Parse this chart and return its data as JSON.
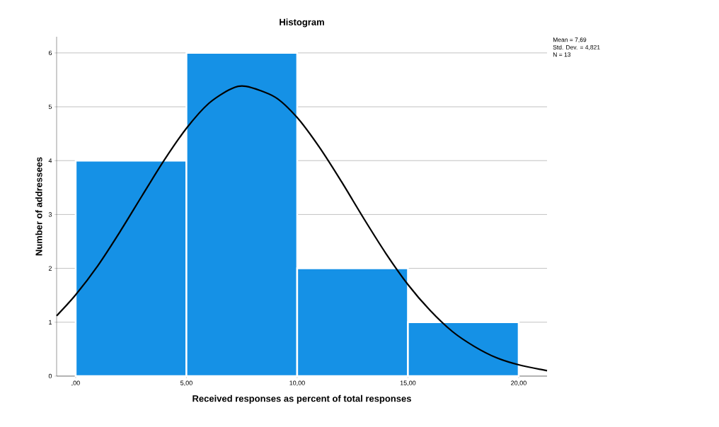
{
  "chart_data": {
    "type": "histogram",
    "title": "Histogram",
    "xlabel": "Received responses as percent of total responses",
    "ylabel": "Number of addressees",
    "bins": [
      0,
      5,
      10,
      15,
      20
    ],
    "values": [
      4,
      6,
      2,
      1
    ],
    "color": "#1591e6",
    "series": [
      {
        "type": "line",
        "color": "#000000",
        "x": [
          -0.86,
          0,
          1,
          2,
          3,
          4,
          5,
          6,
          7,
          7.69,
          9,
          10,
          11,
          12,
          13,
          14,
          15,
          16,
          17,
          18,
          19,
          20,
          21.28
        ],
        "values": [
          1.12,
          1.51,
          2.05,
          2.68,
          3.35,
          4.01,
          4.6,
          5.06,
          5.33,
          5.38,
          5.18,
          4.8,
          4.25,
          3.61,
          2.93,
          2.28,
          1.7,
          1.22,
          0.83,
          0.55,
          0.34,
          0.21,
          0.1
        ]
      }
    ],
    "xlim": [
      -0.86,
      21.28
    ],
    "ylim": [
      0,
      6.3
    ],
    "xticks": [
      {
        "value": 0,
        "label": ",00"
      },
      {
        "value": 5,
        "label": "5,00"
      },
      {
        "value": 10,
        "label": "10,00"
      },
      {
        "value": 15,
        "label": "15,00"
      },
      {
        "value": 20,
        "label": "20,00"
      }
    ],
    "yticks": [
      0,
      1,
      2,
      3,
      4,
      5,
      6
    ],
    "grid": "y",
    "annotations": [
      "Mean = 7,69",
      "Std. Dev. = 4,821",
      "N = 13"
    ]
  }
}
